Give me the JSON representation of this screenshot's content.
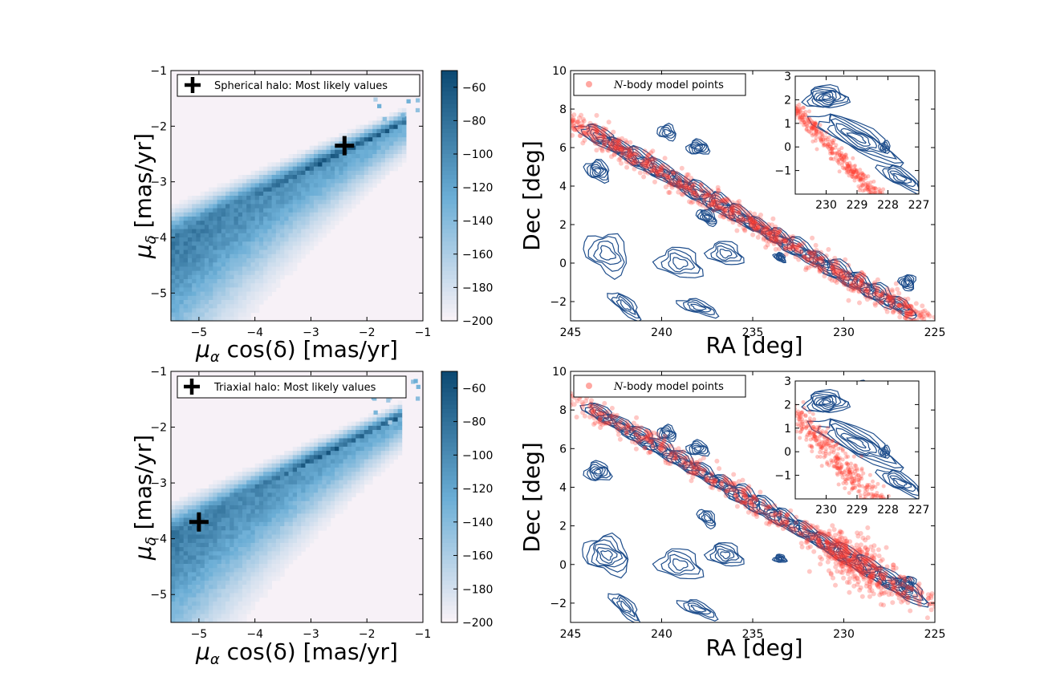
{
  "colors": {
    "heat_low": "#fdf4f8",
    "heat_high": "#0d4a73",
    "contour": "#1f4e8c",
    "nbody": "#ff3b2f",
    "marker": "#000000"
  },
  "chart_data": [
    {
      "id": "pm-spherical",
      "type": "heatmap",
      "xlabel_prefix": "μ",
      "xlabel_sub": "α",
      "xlabel_rest": " cos(δ) [mas/yr]",
      "ylabel_prefix": "μ",
      "ylabel_sub": "δ",
      "ylabel_rest": " [mas/yr]",
      "xlim": [
        -5.5,
        -1
      ],
      "ylim": [
        -5.5,
        -1
      ],
      "xticks": [
        "-5",
        "-4",
        "-3",
        "-2",
        "-1"
      ],
      "yticks": [
        "-5",
        "-4",
        "-3",
        "-2",
        "-1"
      ],
      "legend": "Spherical halo: Most likely values",
      "marker": {
        "x": -2.4,
        "y": -2.35
      },
      "colorbar_ticks": [
        "-60",
        "-80",
        "-100",
        "-120",
        "-140",
        "-160",
        "-180",
        "-200"
      ],
      "colorbar_range": [
        -200,
        -50
      ],
      "ridge": {
        "start": [
          -5.5,
          -4.0
        ],
        "end": [
          -1.5,
          -2.05
        ]
      }
    },
    {
      "id": "sky-spherical",
      "type": "scatter",
      "xlabel": "RA [deg]",
      "ylabel": "Dec [deg]",
      "xlim": [
        245,
        225
      ],
      "ylim": [
        -3,
        10
      ],
      "xticks": [
        "245",
        "240",
        "235",
        "230",
        "225"
      ],
      "yticks": [
        "-2",
        "0",
        "2",
        "4",
        "6",
        "8",
        "10"
      ],
      "legend_prefix": "N",
      "legend_rest": "-body model points",
      "stream": {
        "start": [
          245,
          7.4
        ],
        "end": [
          225.5,
          -3.0
        ]
      },
      "inset": {
        "xlim": [
          231,
          227
        ],
        "ylim": [
          -2,
          3
        ],
        "xticks": [
          "230",
          "229",
          "228",
          "227"
        ],
        "yticks": [
          "-1",
          "0",
          "1",
          "2",
          "3"
        ]
      }
    },
    {
      "id": "pm-triaxial",
      "type": "heatmap",
      "xlabel_prefix": "μ",
      "xlabel_sub": "α",
      "xlabel_rest": " cos(δ) [mas/yr]",
      "ylabel_prefix": "μ",
      "ylabel_sub": "δ",
      "ylabel_rest": " [mas/yr]",
      "xlim": [
        -5.5,
        -1
      ],
      "ylim": [
        -5.5,
        -1
      ],
      "xticks": [
        "-5",
        "-4",
        "-3",
        "-2",
        "-1"
      ],
      "yticks": [
        "-5",
        "-4",
        "-3",
        "-2",
        "-1"
      ],
      "legend": "Triaxial halo: Most likely values",
      "marker": {
        "x": -5.0,
        "y": -3.7
      },
      "colorbar_ticks": [
        "-60",
        "-80",
        "-100",
        "-120",
        "-140",
        "-160",
        "-180",
        "-200"
      ],
      "colorbar_range": [
        -200,
        -50
      ],
      "ridge": {
        "start": [
          -5.5,
          -3.9
        ],
        "end": [
          -1.6,
          -1.95
        ]
      }
    },
    {
      "id": "sky-triaxial",
      "type": "scatter",
      "xlabel": "RA [deg]",
      "ylabel": "Dec [deg]",
      "xlim": [
        245,
        225
      ],
      "ylim": [
        -3,
        10
      ],
      "xticks": [
        "245",
        "240",
        "235",
        "230",
        "225"
      ],
      "yticks": [
        "-2",
        "0",
        "2",
        "4",
        "6",
        "8",
        "10"
      ],
      "legend_prefix": "N",
      "legend_rest": "-body model points",
      "stream": {
        "start": [
          245,
          8.7
        ],
        "end": [
          225,
          -2.2
        ]
      },
      "inset": {
        "xlim": [
          231,
          227
        ],
        "ylim": [
          -2,
          3
        ],
        "xticks": [
          "230",
          "229",
          "228",
          "227"
        ],
        "yticks": [
          "-1",
          "0",
          "1",
          "2",
          "3"
        ]
      }
    }
  ]
}
